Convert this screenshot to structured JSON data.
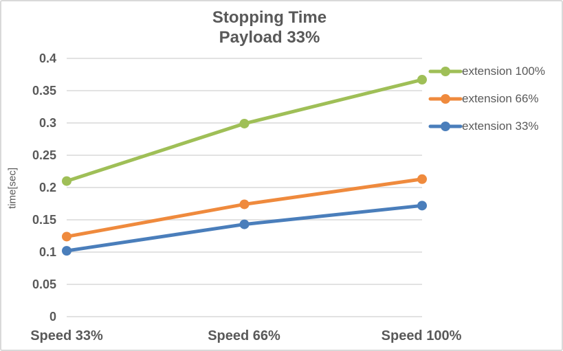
{
  "chart_data": {
    "type": "line",
    "title": "Stopping Time",
    "subtitle": "Payload 33%",
    "categories": [
      "Speed 33%",
      "Speed 66%",
      "Speed 100%"
    ],
    "series": [
      {
        "name": "extension 100%",
        "color": "#9FBF57",
        "values": [
          0.21,
          0.299,
          0.367
        ]
      },
      {
        "name": "extension 66%",
        "color": "#EF8A3D",
        "values": [
          0.124,
          0.174,
          0.213
        ]
      },
      {
        "name": "extension 33%",
        "color": "#4A7EBB",
        "values": [
          0.102,
          0.143,
          0.172
        ]
      }
    ],
    "xlabel": "",
    "ylabel": "time[sec]",
    "ylim": [
      0,
      0.4
    ],
    "ytick_step": 0.05,
    "ytick_labels": [
      "0",
      "0.05",
      "0.1",
      "0.15",
      "0.2",
      "0.25",
      "0.3",
      "0.35",
      "0.4"
    ],
    "grid": true,
    "legend_position": "right",
    "colors": {
      "text": "#595959",
      "gridline": "#D9D9D9",
      "frame_border": "#D9D9D9",
      "background": "#FFFFFF"
    }
  }
}
